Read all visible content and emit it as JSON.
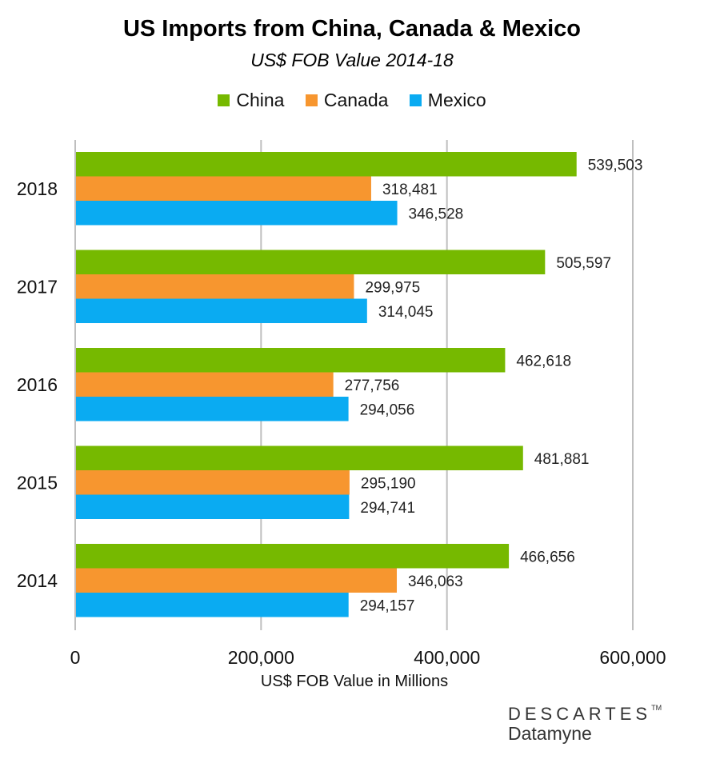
{
  "chart_data": {
    "type": "bar",
    "orientation": "horizontal",
    "title": "US Imports from China, Canada & Mexico",
    "subtitle": "US$ FOB Value 2014-18",
    "xlabel": "US$ FOB Value in Millions",
    "ylabel": "",
    "categories": [
      "2018",
      "2017",
      "2016",
      "2015",
      "2014"
    ],
    "series": [
      {
        "name": "China",
        "color": "#76b900",
        "values": [
          539503,
          505597,
          462618,
          481881,
          466656
        ],
        "labels": [
          "539,503",
          "505,597",
          "462,618",
          "481,881",
          "466,656"
        ]
      },
      {
        "name": "Canada",
        "color": "#f7962f",
        "values": [
          318481,
          299975,
          277756,
          295190,
          346063
        ],
        "labels": [
          "318,481",
          "299,975",
          "277,756",
          "295,190",
          "346,063"
        ]
      },
      {
        "name": "Mexico",
        "color": "#0aabf2",
        "values": [
          346528,
          314045,
          294056,
          294741,
          294157
        ],
        "labels": [
          "346,528",
          "314,045",
          "294,056",
          "294,741",
          "294,157"
        ]
      }
    ],
    "xlim": [
      0,
      600000
    ],
    "xticks": [
      0,
      200000,
      400000,
      600000
    ],
    "xtick_labels": [
      "0",
      "200,000",
      "400,000",
      "600,000"
    ],
    "grid": "vertical",
    "legend_position": "top"
  },
  "logo": {
    "top": "DESCARTES",
    "tm": "TM",
    "bottom": "Datamyne"
  }
}
